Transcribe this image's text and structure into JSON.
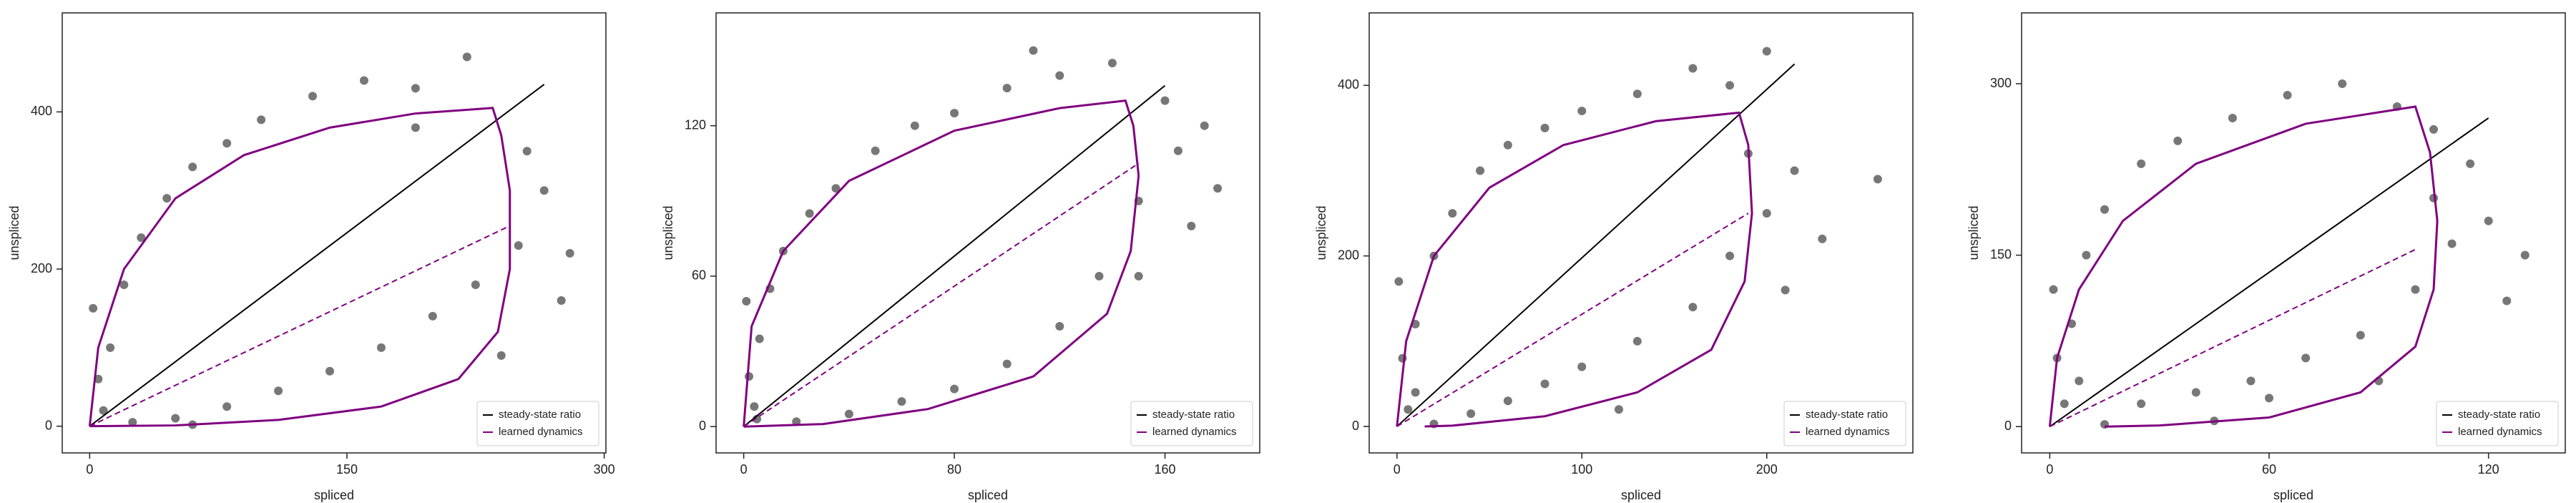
{
  "chart_data": [
    {
      "type": "scatter",
      "xlabel": "spliced",
      "ylabel": "unspliced",
      "xlim": [
        -16,
        301
      ],
      "ylim": [
        -34,
        526
      ],
      "xticks": [
        0,
        150,
        300
      ],
      "yticks": [
        0,
        200,
        400
      ],
      "legend": "lower right",
      "series": [
        {
          "type": "scatter",
          "color": "#777777",
          "x": [
            2,
            5,
            8,
            12,
            20,
            30,
            45,
            60,
            80,
            100,
            130,
            160,
            190,
            220,
            25,
            50,
            80,
            110,
            140,
            170,
            200,
            225,
            250,
            265,
            280,
            255,
            240,
            275,
            190,
            60
          ],
          "y": [
            150,
            60,
            20,
            100,
            180,
            240,
            290,
            330,
            360,
            390,
            420,
            440,
            430,
            470,
            5,
            10,
            25,
            45,
            70,
            100,
            140,
            180,
            230,
            300,
            220,
            350,
            90,
            160,
            380,
            2
          ]
        },
        {
          "type": "line",
          "name": "steady-state ratio",
          "color": "#000000",
          "x": [
            0,
            265
          ],
          "y": [
            0,
            435
          ]
        },
        {
          "type": "line",
          "name": "learned dynamics",
          "color": "#800080",
          "x": [
            0,
            5,
            20,
            50,
            90,
            140,
            190,
            235,
            240,
            245,
            245,
            238,
            215,
            170,
            110,
            50,
            0
          ],
          "y": [
            0,
            100,
            200,
            290,
            345,
            380,
            398,
            405,
            370,
            300,
            200,
            120,
            60,
            25,
            8,
            1,
            0
          ]
        },
        {
          "type": "line",
          "dash": true,
          "color": "#800080",
          "x": [
            0,
            245
          ],
          "y": [
            0,
            255
          ]
        }
      ]
    },
    {
      "type": "scatter",
      "xlabel": "spliced",
      "ylabel": "unspliced",
      "xlim": [
        -10.5,
        196
      ],
      "ylim": [
        -10.5,
        165
      ],
      "xticks": [
        0,
        80,
        160
      ],
      "yticks": [
        0,
        60,
        120
      ],
      "legend": "lower right",
      "series": [
        {
          "type": "scatter",
          "color": "#777777",
          "x": [
            1,
            2,
            4,
            6,
            10,
            15,
            25,
            35,
            50,
            65,
            80,
            100,
            120,
            140,
            160,
            175,
            20,
            40,
            60,
            80,
            100,
            120,
            135,
            150,
            165,
            180,
            150,
            170,
            5,
            110
          ],
          "y": [
            50,
            20,
            8,
            35,
            55,
            70,
            85,
            95,
            110,
            120,
            125,
            135,
            140,
            145,
            130,
            120,
            2,
            5,
            10,
            15,
            25,
            40,
            60,
            90,
            110,
            95,
            60,
            80,
            3,
            150
          ]
        },
        {
          "type": "line",
          "name": "steady-state ratio",
          "color": "#000000",
          "x": [
            0,
            160
          ],
          "y": [
            0,
            136
          ]
        },
        {
          "type": "line",
          "name": "learned dynamics",
          "color": "#800080",
          "x": [
            0,
            3,
            15,
            40,
            80,
            120,
            145,
            148,
            150,
            147,
            138,
            110,
            70,
            30,
            0
          ],
          "y": [
            0,
            40,
            70,
            98,
            118,
            127,
            130,
            120,
            100,
            70,
            45,
            20,
            7,
            1,
            0
          ]
        },
        {
          "type": "line",
          "dash": true,
          "color": "#800080",
          "x": [
            0,
            150
          ],
          "y": [
            0,
            105
          ]
        }
      ]
    },
    {
      "type": "scatter",
      "xlabel": "spliced",
      "ylabel": "unspliced",
      "xlim": [
        -15,
        279
      ],
      "ylim": [
        -31,
        485
      ],
      "xticks": [
        0,
        100,
        200
      ],
      "yticks": [
        0,
        200,
        400
      ],
      "legend": "lower right",
      "series": [
        {
          "type": "scatter",
          "color": "#777777",
          "x": [
            1,
            3,
            6,
            10,
            20,
            30,
            45,
            60,
            80,
            100,
            130,
            160,
            180,
            200,
            20,
            40,
            60,
            80,
            100,
            130,
            160,
            180,
            200,
            215,
            230,
            260,
            190,
            210,
            120,
            10
          ],
          "y": [
            170,
            80,
            20,
            120,
            200,
            250,
            300,
            330,
            350,
            370,
            390,
            420,
            400,
            440,
            3,
            15,
            30,
            50,
            70,
            100,
            140,
            200,
            250,
            300,
            220,
            290,
            320,
            160,
            20,
            40
          ]
        },
        {
          "type": "line",
          "name": "steady-state ratio",
          "color": "#000000",
          "x": [
            0,
            215
          ],
          "y": [
            0,
            425
          ]
        },
        {
          "type": "line",
          "name": "learned dynamics",
          "color": "#800080",
          "x": [
            0,
            5,
            20,
            50,
            90,
            140,
            185,
            190,
            192,
            188,
            170,
            130,
            80,
            30,
            15
          ],
          "y": [
            0,
            100,
            200,
            280,
            330,
            358,
            368,
            330,
            250,
            170,
            90,
            40,
            12,
            1,
            0
          ]
        },
        {
          "type": "line",
          "dash": true,
          "color": "#800080",
          "x": [
            0,
            190
          ],
          "y": [
            0,
            250
          ]
        }
      ]
    },
    {
      "type": "scatter",
      "xlabel": "spliced",
      "ylabel": "unspliced",
      "xlim": [
        -7.7,
        141
      ],
      "ylim": [
        -23,
        362
      ],
      "xticks": [
        0,
        60,
        120
      ],
      "yticks": [
        0,
        150,
        300
      ],
      "legend": "lower right",
      "series": [
        {
          "type": "scatter",
          "color": "#777777",
          "x": [
            1,
            2,
            4,
            6,
            10,
            15,
            25,
            35,
            50,
            65,
            80,
            95,
            105,
            15,
            25,
            40,
            55,
            70,
            85,
            100,
            110,
            120,
            130,
            115,
            105,
            125,
            90,
            60,
            45,
            8
          ],
          "y": [
            120,
            60,
            20,
            90,
            150,
            190,
            230,
            250,
            270,
            290,
            300,
            280,
            260,
            2,
            20,
            30,
            40,
            60,
            80,
            120,
            160,
            180,
            150,
            230,
            200,
            110,
            40,
            25,
            5,
            40
          ]
        },
        {
          "type": "line",
          "name": "steady-state ratio",
          "color": "#000000",
          "x": [
            0,
            120
          ],
          "y": [
            0,
            270
          ]
        },
        {
          "type": "line",
          "name": "learned dynamics",
          "color": "#800080",
          "x": [
            0,
            2,
            8,
            20,
            40,
            70,
            100,
            104,
            106,
            105,
            100,
            85,
            60,
            30,
            15
          ],
          "y": [
            0,
            60,
            120,
            180,
            230,
            265,
            280,
            240,
            180,
            120,
            70,
            30,
            8,
            1,
            0
          ]
        },
        {
          "type": "line",
          "dash": true,
          "color": "#800080",
          "x": [
            0,
            100
          ],
          "y": [
            0,
            155
          ]
        }
      ]
    }
  ]
}
